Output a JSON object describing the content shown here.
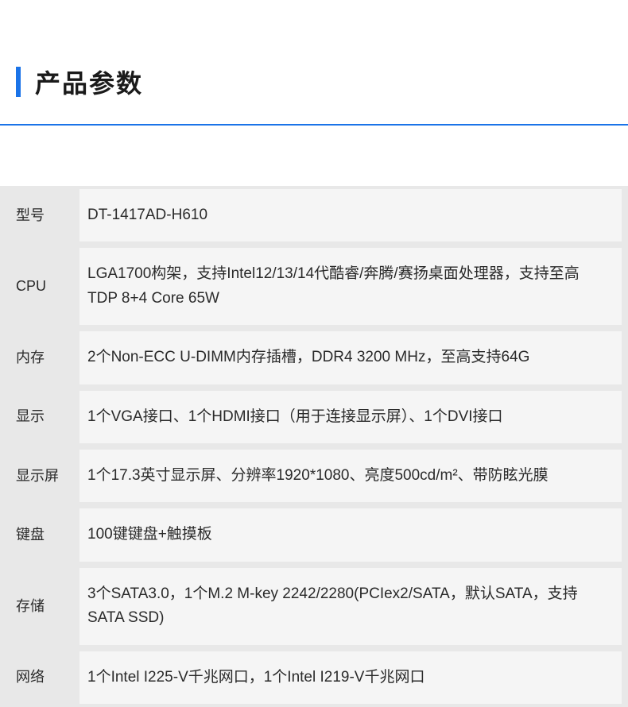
{
  "header": {
    "title": "产品参数",
    "accent_color": "#1a73e8",
    "border_color": "#1a73e8"
  },
  "specs": [
    {
      "label": "型号",
      "value": "DT-1417AD-H610"
    },
    {
      "label": "CPU",
      "value": "LGA1700构架，支持Intel12/13/14代酷睿/奔腾/赛扬桌面处理器，支持至高TDP 8+4 Core 65W"
    },
    {
      "label": "内存",
      "value": "2个Non-ECC U-DIMM内存插槽，DDR4 3200 MHz，至高支持64G"
    },
    {
      "label": "显示",
      "value": "1个VGA接口、1个HDMI接口（用于连接显示屏）、1个DVI接口"
    },
    {
      "label": "显示屏",
      "value": "1个17.3英寸显示屏、分辨率1920*1080、亮度500cd/m²、带防眩光膜"
    },
    {
      "label": "键盘",
      "value": "100键键盘+触摸板"
    },
    {
      "label": "存储",
      "value": "3个SATA3.0，1个M.2 M-key 2242/2280(PCIex2/SATA，默认SATA，支持SATA SSD)"
    },
    {
      "label": "网络",
      "value": "1个Intel I225-V千兆网口，1个Intel I219-V千兆网口"
    }
  ],
  "colors": {
    "page_bg": "#ffffff",
    "table_bg": "#e8e8e8",
    "value_bg": "#f5f5f5",
    "text": "#2a2a2a"
  }
}
